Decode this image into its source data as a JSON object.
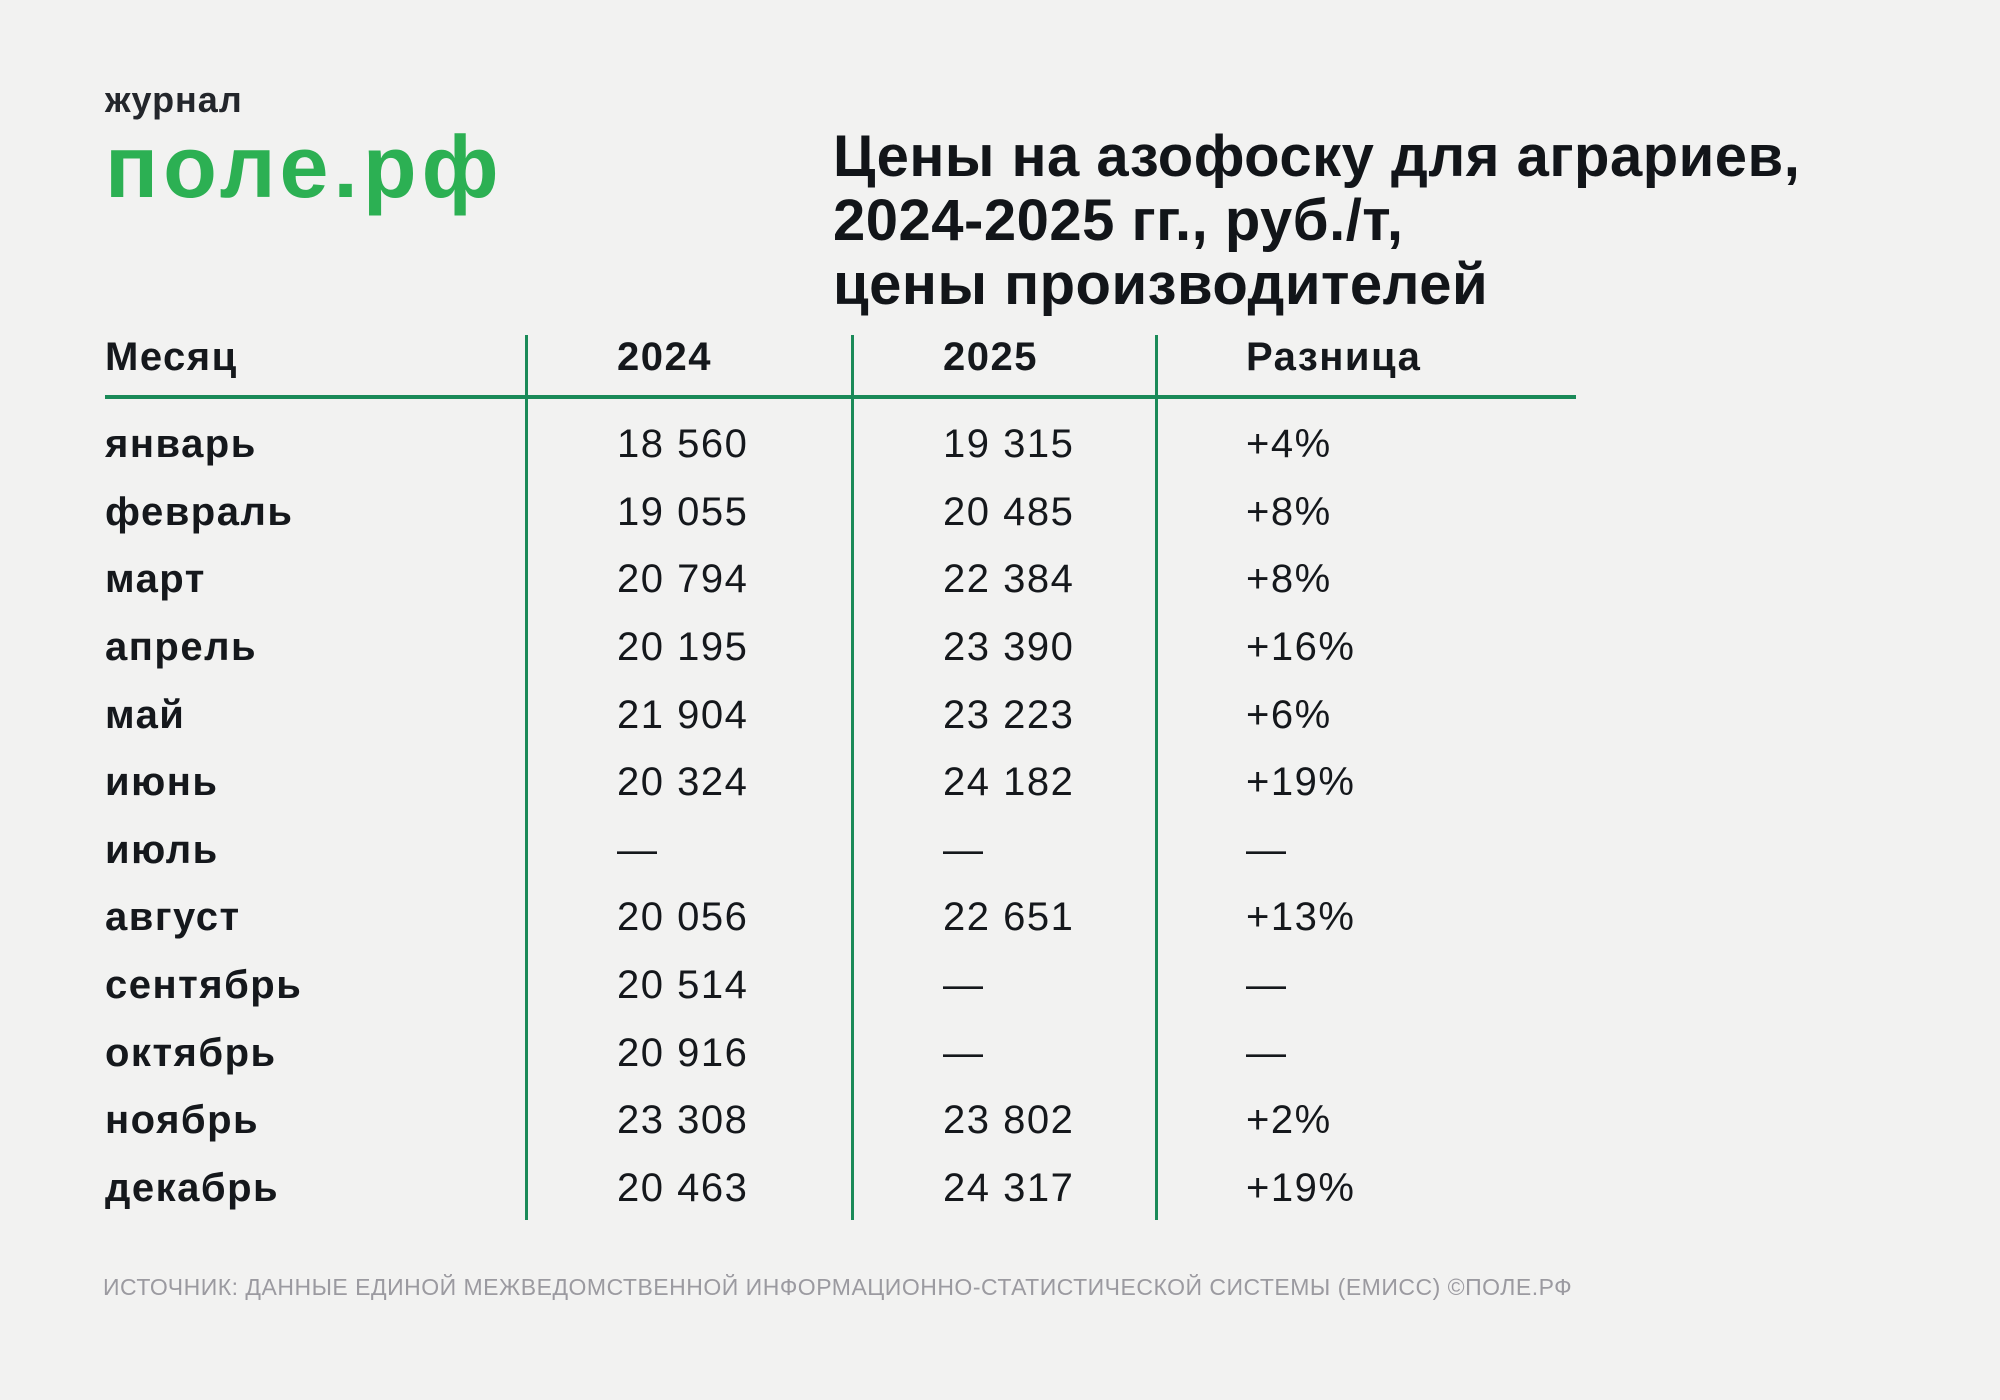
{
  "logo": {
    "tagline": "журнал",
    "brand": "поле.рф"
  },
  "title": {
    "lines": [
      "Цены на азофоску для аграриев,",
      "2024-2025 гг., руб./т,",
      "цены производителей"
    ]
  },
  "chart_data": {
    "type": "table",
    "title": "Цены на азофоску для аграриев, 2024-2025 гг., руб./т, цены производителей",
    "columns": [
      "Месяц",
      "2024",
      "2025",
      "Разница"
    ],
    "rows": [
      [
        "январь",
        "18 560",
        "19 315",
        "+4%"
      ],
      [
        "февраль",
        "19 055",
        "20 485",
        "+8%"
      ],
      [
        "март",
        "20 794",
        "22 384",
        "+8%"
      ],
      [
        "апрель",
        "20 195",
        "23 390",
        "+16%"
      ],
      [
        "май",
        "21 904",
        "23 223",
        "+6%"
      ],
      [
        "июнь",
        "20 324",
        "24 182",
        "+19%"
      ],
      [
        "июль",
        "—",
        "—",
        "—"
      ],
      [
        "август",
        "20 056",
        "22 651",
        "+13%"
      ],
      [
        "сентябрь",
        "20 514",
        "—",
        "—"
      ],
      [
        "октябрь",
        "20 916",
        "—",
        "—"
      ],
      [
        "ноябрь",
        "23 308",
        "23 802",
        "+2%"
      ],
      [
        "декабрь",
        "20 463",
        "24 317",
        "+19%"
      ]
    ],
    "units": "руб./т",
    "source": "ИСТОЧНИК: ДАННЫЕ ЕДИНОЙ МЕЖВЕДОМСТВЕННОЙ ИНФОРМАЦИОННО-СТАТИСТИЧЕСКОЙ СИСТЕМЫ (ЕМИСС) ©ПОЛЕ.РФ"
  },
  "footer": {
    "source": "ИСТОЧНИК: ДАННЫЕ ЕДИНОЙ МЕЖВЕДОМСТВЕННОЙ ИНФОРМАЦИОННО-СТАТИСТИЧЕСКОЙ СИСТЕМЫ (ЕМИСС) ©ПОЛЕ.РФ"
  },
  "colors": {
    "background": "#f2f2f1",
    "text": "#15181c",
    "table_line_green": "#1a8a58",
    "logo_green": "#2cb053",
    "muted_gray": "#9b9aa0"
  }
}
